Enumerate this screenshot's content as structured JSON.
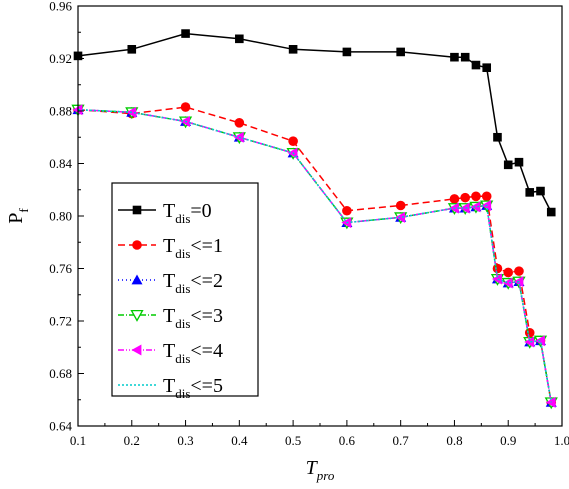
{
  "chart_data": {
    "type": "line",
    "xlabel": "T",
    "xlabel_sub": "pro",
    "ylabel": "P",
    "ylabel_sub": "f",
    "xlim": [
      0.1,
      1.0
    ],
    "ylim": [
      0.64,
      0.96
    ],
    "x_ticks": [
      "0.1",
      "0.2",
      "0.3",
      "0.4",
      "0.5",
      "0.6",
      "0.7",
      "0.8",
      "0.9",
      "1.0"
    ],
    "y_ticks": [
      "0.64",
      "0.68",
      "0.72",
      "0.76",
      "0.80",
      "0.84",
      "0.88",
      "0.92",
      "0.96"
    ],
    "grid": false,
    "legend_position": "center-left",
    "series": [
      {
        "legend_main": "T",
        "legend_sub": "dis",
        "legend_rel": "=0",
        "color": "#000000",
        "dash": "",
        "marker": "square",
        "x": [
          0.1,
          0.2,
          0.3,
          0.4,
          0.5,
          0.6,
          0.7,
          0.8,
          0.82,
          0.84,
          0.86,
          0.88,
          0.9,
          0.92,
          0.94,
          0.96,
          0.98
        ],
        "y": [
          0.922,
          0.927,
          0.939,
          0.935,
          0.927,
          0.925,
          0.925,
          0.921,
          0.921,
          0.915,
          0.913,
          0.86,
          0.839,
          0.841,
          0.818,
          0.819,
          0.803
        ]
      },
      {
        "legend_main": "T",
        "legend_sub": "dis",
        "legend_rel": "<=1",
        "color": "#ff0000",
        "dash": "7,4",
        "marker": "circle",
        "x": [
          0.1,
          0.2,
          0.3,
          0.4,
          0.5,
          0.6,
          0.7,
          0.8,
          0.82,
          0.84,
          0.86,
          0.88,
          0.9,
          0.92,
          0.94,
          0.96,
          0.98
        ],
        "y": [
          0.881,
          0.878,
          0.883,
          0.871,
          0.857,
          0.804,
          0.808,
          0.813,
          0.814,
          0.815,
          0.815,
          0.76,
          0.757,
          0.758,
          0.711,
          0.705,
          0.658
        ]
      },
      {
        "legend_main": "T",
        "legend_sub": "dis",
        "legend_rel": "<=2",
        "color": "#0000ff",
        "dash": "1,3",
        "marker": "triangle-up",
        "x": [
          0.1,
          0.2,
          0.3,
          0.4,
          0.5,
          0.6,
          0.7,
          0.8,
          0.82,
          0.84,
          0.86,
          0.88,
          0.9,
          0.92,
          0.94,
          0.96,
          0.98
        ],
        "y": [
          0.881,
          0.879,
          0.872,
          0.86,
          0.848,
          0.795,
          0.799,
          0.806,
          0.806,
          0.807,
          0.808,
          0.752,
          0.749,
          0.75,
          0.704,
          0.705,
          0.658
        ]
      },
      {
        "legend_main": "T",
        "legend_sub": "dis",
        "legend_rel": "<=3",
        "color": "#00cc00",
        "dash": "6,2,1,2",
        "marker": "triangle-down",
        "x": [
          0.1,
          0.2,
          0.3,
          0.4,
          0.5,
          0.6,
          0.7,
          0.8,
          0.82,
          0.84,
          0.86,
          0.88,
          0.9,
          0.92,
          0.94,
          0.96,
          0.98
        ],
        "y": [
          0.881,
          0.879,
          0.872,
          0.86,
          0.848,
          0.795,
          0.799,
          0.806,
          0.806,
          0.807,
          0.808,
          0.752,
          0.749,
          0.75,
          0.704,
          0.705,
          0.658
        ]
      },
      {
        "legend_main": "T",
        "legend_sub": "dis",
        "legend_rel": "<=4",
        "color": "#ff00ff",
        "dash": "6,2,1,2,1,2",
        "marker": "triangle-left",
        "x": [
          0.1,
          0.2,
          0.3,
          0.4,
          0.5,
          0.6,
          0.7,
          0.8,
          0.82,
          0.84,
          0.86,
          0.88,
          0.9,
          0.92,
          0.94,
          0.96,
          0.98
        ],
        "y": [
          0.881,
          0.879,
          0.872,
          0.86,
          0.848,
          0.795,
          0.799,
          0.806,
          0.806,
          0.807,
          0.808,
          0.752,
          0.749,
          0.75,
          0.704,
          0.705,
          0.658
        ]
      },
      {
        "legend_main": "T",
        "legend_sub": "dis",
        "legend_rel": "<=5",
        "color": "#00cccc",
        "dash": "2,2",
        "marker": "none",
        "x": [
          0.1,
          0.2,
          0.3,
          0.4,
          0.5,
          0.6,
          0.7,
          0.8,
          0.82,
          0.84,
          0.86,
          0.88,
          0.9,
          0.92,
          0.94,
          0.96,
          0.98
        ],
        "y": [
          0.881,
          0.879,
          0.872,
          0.86,
          0.848,
          0.795,
          0.799,
          0.806,
          0.806,
          0.807,
          0.808,
          0.752,
          0.749,
          0.75,
          0.704,
          0.705,
          0.658
        ]
      }
    ]
  }
}
